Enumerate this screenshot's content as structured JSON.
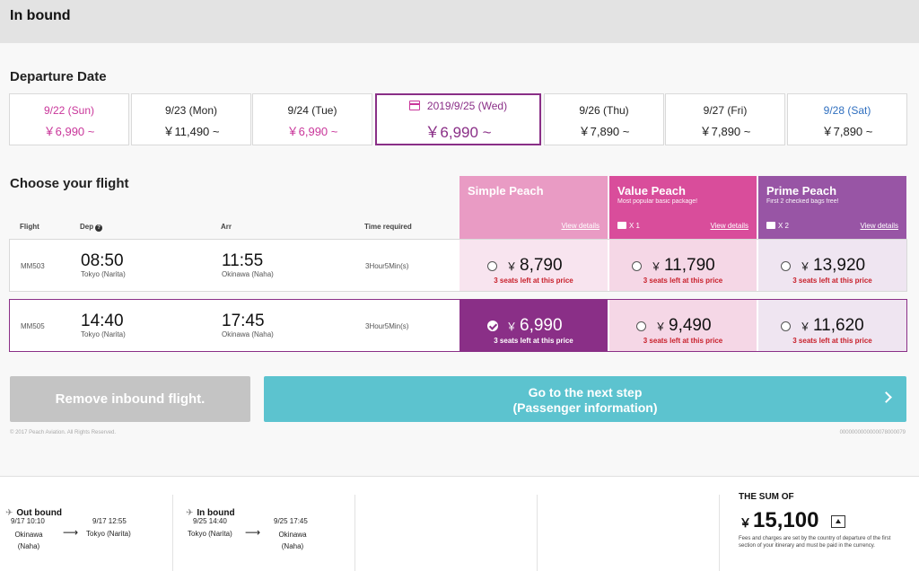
{
  "header": {
    "title": "In bound"
  },
  "departure": {
    "title": "Departure Date",
    "dates": [
      {
        "label": "9/22 (Sun)",
        "price": "￥6,990 ~"
      },
      {
        "label": "9/23 (Mon)",
        "price": "￥11,490 ~"
      },
      {
        "label": "9/24 (Tue)",
        "price": "￥6,990 ~"
      },
      {
        "label": "2019/9/25 (Wed)",
        "price": "￥6,990 ~"
      },
      {
        "label": "9/26 (Thu)",
        "price": "￥7,890 ~"
      },
      {
        "label": "9/27 (Fri)",
        "price": "￥7,890 ~"
      },
      {
        "label": "9/28 (Sat)",
        "price": "￥7,890 ~"
      }
    ]
  },
  "flights_section": {
    "title": "Choose your flight",
    "columns": {
      "flight": "Flight",
      "dep": "Dep",
      "arr": "Arr",
      "time": "Time required"
    }
  },
  "fares": [
    {
      "name": "Simple Peach",
      "sub": "",
      "bag": "",
      "view": "View details",
      "color": "#e99bc4"
    },
    {
      "name": "Value Peach",
      "sub": "Most popular basic package!",
      "bag": "X 1",
      "view": "View details",
      "color": "#d94d9b"
    },
    {
      "name": "Prime Peach",
      "sub": "First 2 checked bags free!",
      "bag": "X 2",
      "view": "View details",
      "color": "#9855a5"
    }
  ],
  "flights": [
    {
      "number": "MM503",
      "dep_time": "08:50",
      "dep_place": "Tokyo (Narita)",
      "arr_time": "11:55",
      "arr_place": "Okinawa (Naha)",
      "duration": "3Hour5Min(s)",
      "prices": [
        {
          "yen": "￥",
          "amount": "8,790",
          "seats": "3 seats left at this price"
        },
        {
          "yen": "￥",
          "amount": "11,790",
          "seats": "3 seats left at this price"
        },
        {
          "yen": "￥",
          "amount": "13,920",
          "seats": "3 seats left at this price"
        }
      ]
    },
    {
      "number": "MM505",
      "dep_time": "14:40",
      "dep_place": "Tokyo (Narita)",
      "arr_time": "17:45",
      "arr_place": "Okinawa (Naha)",
      "duration": "3Hour5Min(s)",
      "prices": [
        {
          "yen": "￥",
          "amount": "6,990",
          "seats": "3 seats left at this price"
        },
        {
          "yen": "￥",
          "amount": "9,490",
          "seats": "3 seats left at this price"
        },
        {
          "yen": "￥",
          "amount": "11,620",
          "seats": "3 seats left at this price"
        }
      ]
    }
  ],
  "actions": {
    "remove": "Remove inbound flight.",
    "next_line1": "Go to the next step",
    "next_line2": "(Passenger information)"
  },
  "copyright": "© 2017 Peach Aviation. All Rights Reserved.",
  "page_code": "0000000000000078000079",
  "footer": {
    "outbound": {
      "label": "Out bound",
      "dep_time": "9/17 10:10",
      "dep_place": "Okinawa (Naha)",
      "arr_time": "9/17 12:55",
      "arr_place": "Tokyo (Narita)"
    },
    "inbound": {
      "label": "In bound",
      "dep_time": "9/25 14:40",
      "dep_place": "Tokyo (Narita)",
      "arr_time": "9/25 17:45",
      "arr_place": "Okinawa (Naha)"
    },
    "sum_label": "THE SUM OF",
    "sum_yen": "￥",
    "sum_value": "15,100",
    "note": "Fees and charges are set by the country of departure of the first section of your itinerary and must be paid in the currency."
  },
  "colors": {
    "selected_fare": "#8a2f87",
    "simple_light": "#f8e4ef",
    "value_light": "#f5d7e6",
    "prime_light": "#efe5f1",
    "next_button": "#5cc3cf",
    "remove_button": "#c4c4c4"
  },
  "icons": [
    "calendar-icon",
    "info-icon",
    "bag-icon",
    "check-icon",
    "chevron-right-icon",
    "plane-icon",
    "arrow-right-icon",
    "chevron-up-icon"
  ]
}
